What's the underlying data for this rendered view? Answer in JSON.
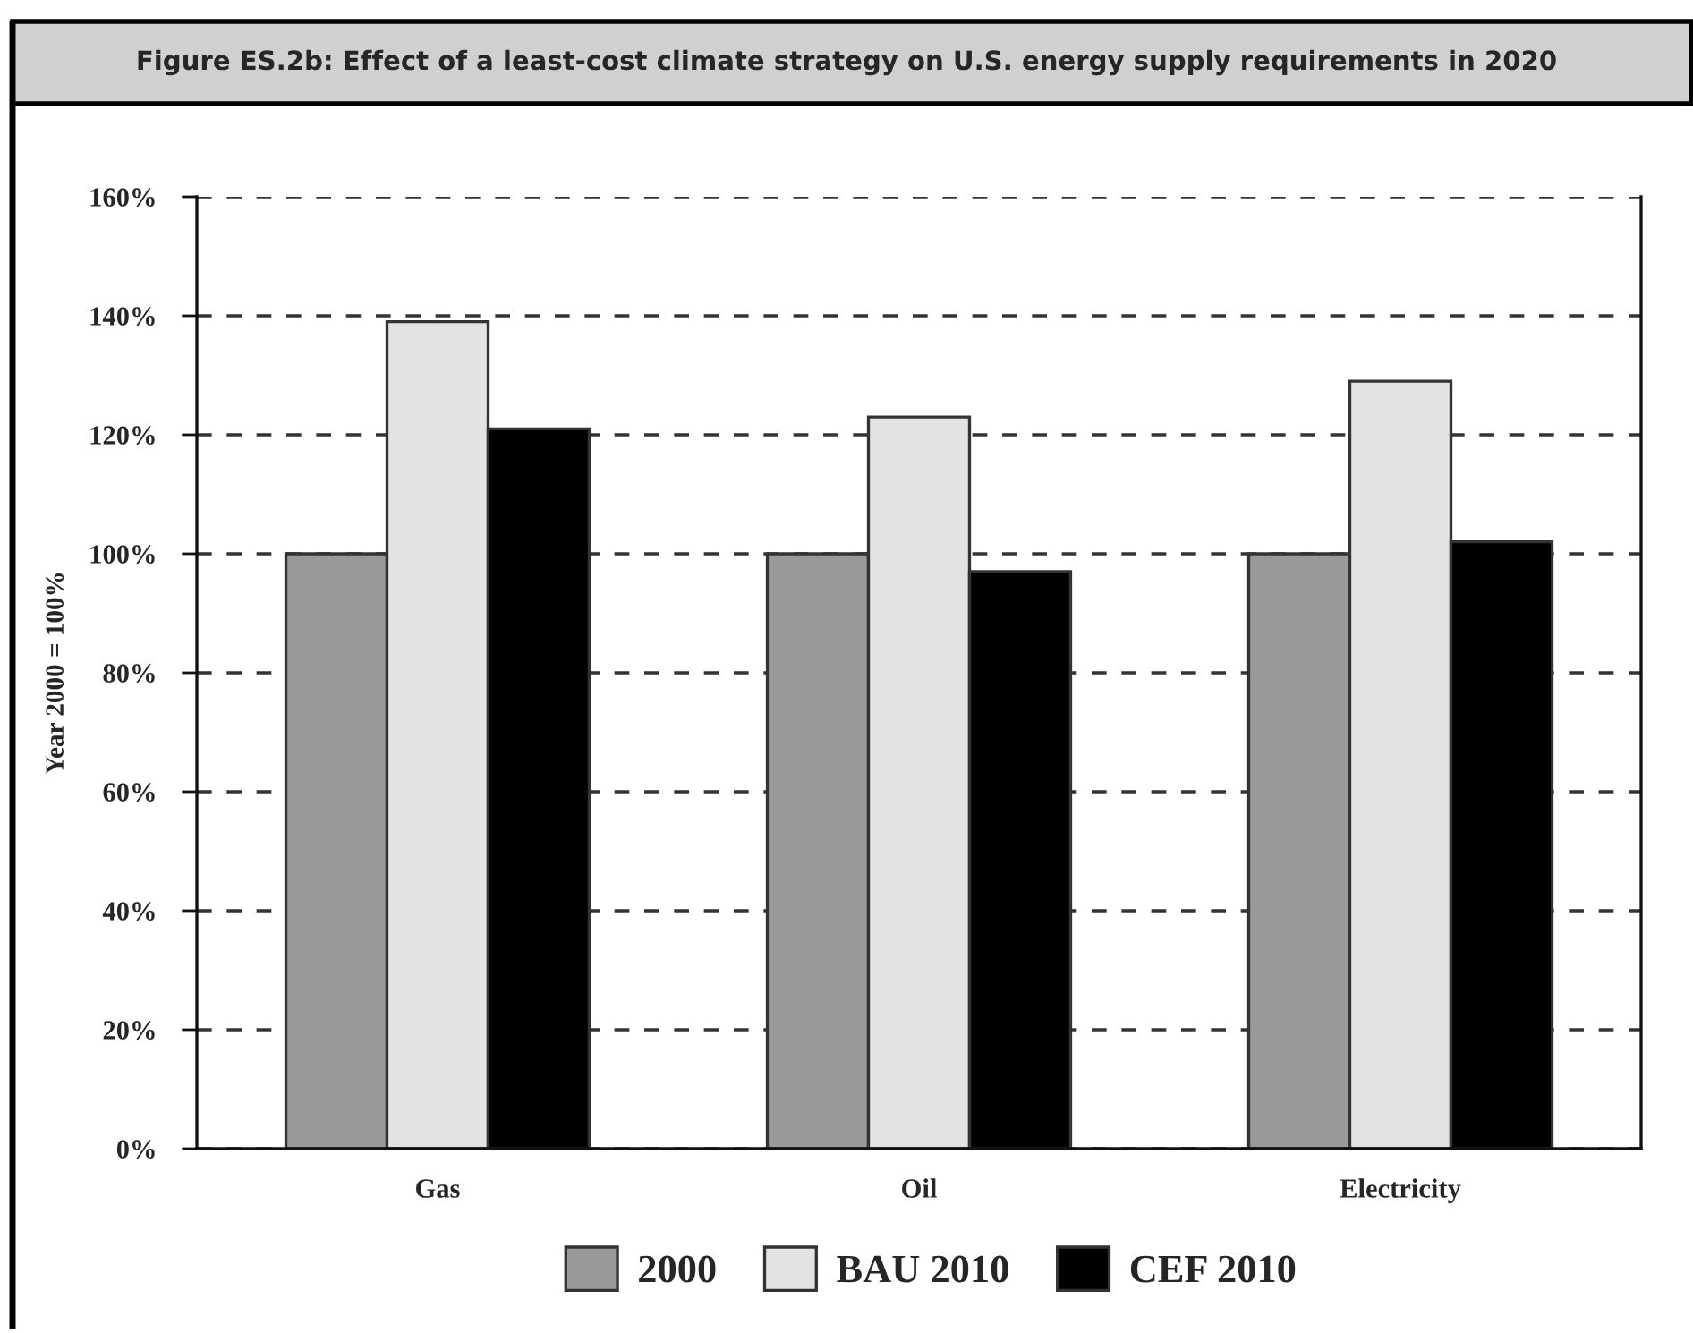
{
  "chart_data": {
    "type": "bar",
    "title": "Figure ES.2b: Effect of a least-cost climate strategy on U.S. energy supply requirements in 2020",
    "categories": [
      "Gas",
      "Oil",
      "Electricity"
    ],
    "series": [
      {
        "name": "2000",
        "color": "#999999",
        "values": [
          100,
          100,
          100
        ]
      },
      {
        "name": "BAU 2010",
        "color": "#e3e3e3",
        "values": [
          139,
          123,
          129
        ]
      },
      {
        "name": "CEF 2010",
        "color": "#000000",
        "values": [
          121,
          97,
          102
        ]
      }
    ],
    "ylabel": "Year 2000 = 100%",
    "ylim": [
      0,
      160
    ],
    "yticks": [
      {
        "value": 0,
        "label": "0%"
      },
      {
        "value": 20,
        "label": "20%"
      },
      {
        "value": 40,
        "label": "40%"
      },
      {
        "value": 60,
        "label": "60%"
      },
      {
        "value": 80,
        "label": "80%"
      },
      {
        "value": 100,
        "label": "100%"
      },
      {
        "value": 120,
        "label": "120%"
      },
      {
        "value": 140,
        "label": "140%"
      },
      {
        "value": 160,
        "label": "160%"
      }
    ],
    "grid": "y",
    "legend": "bottom"
  }
}
